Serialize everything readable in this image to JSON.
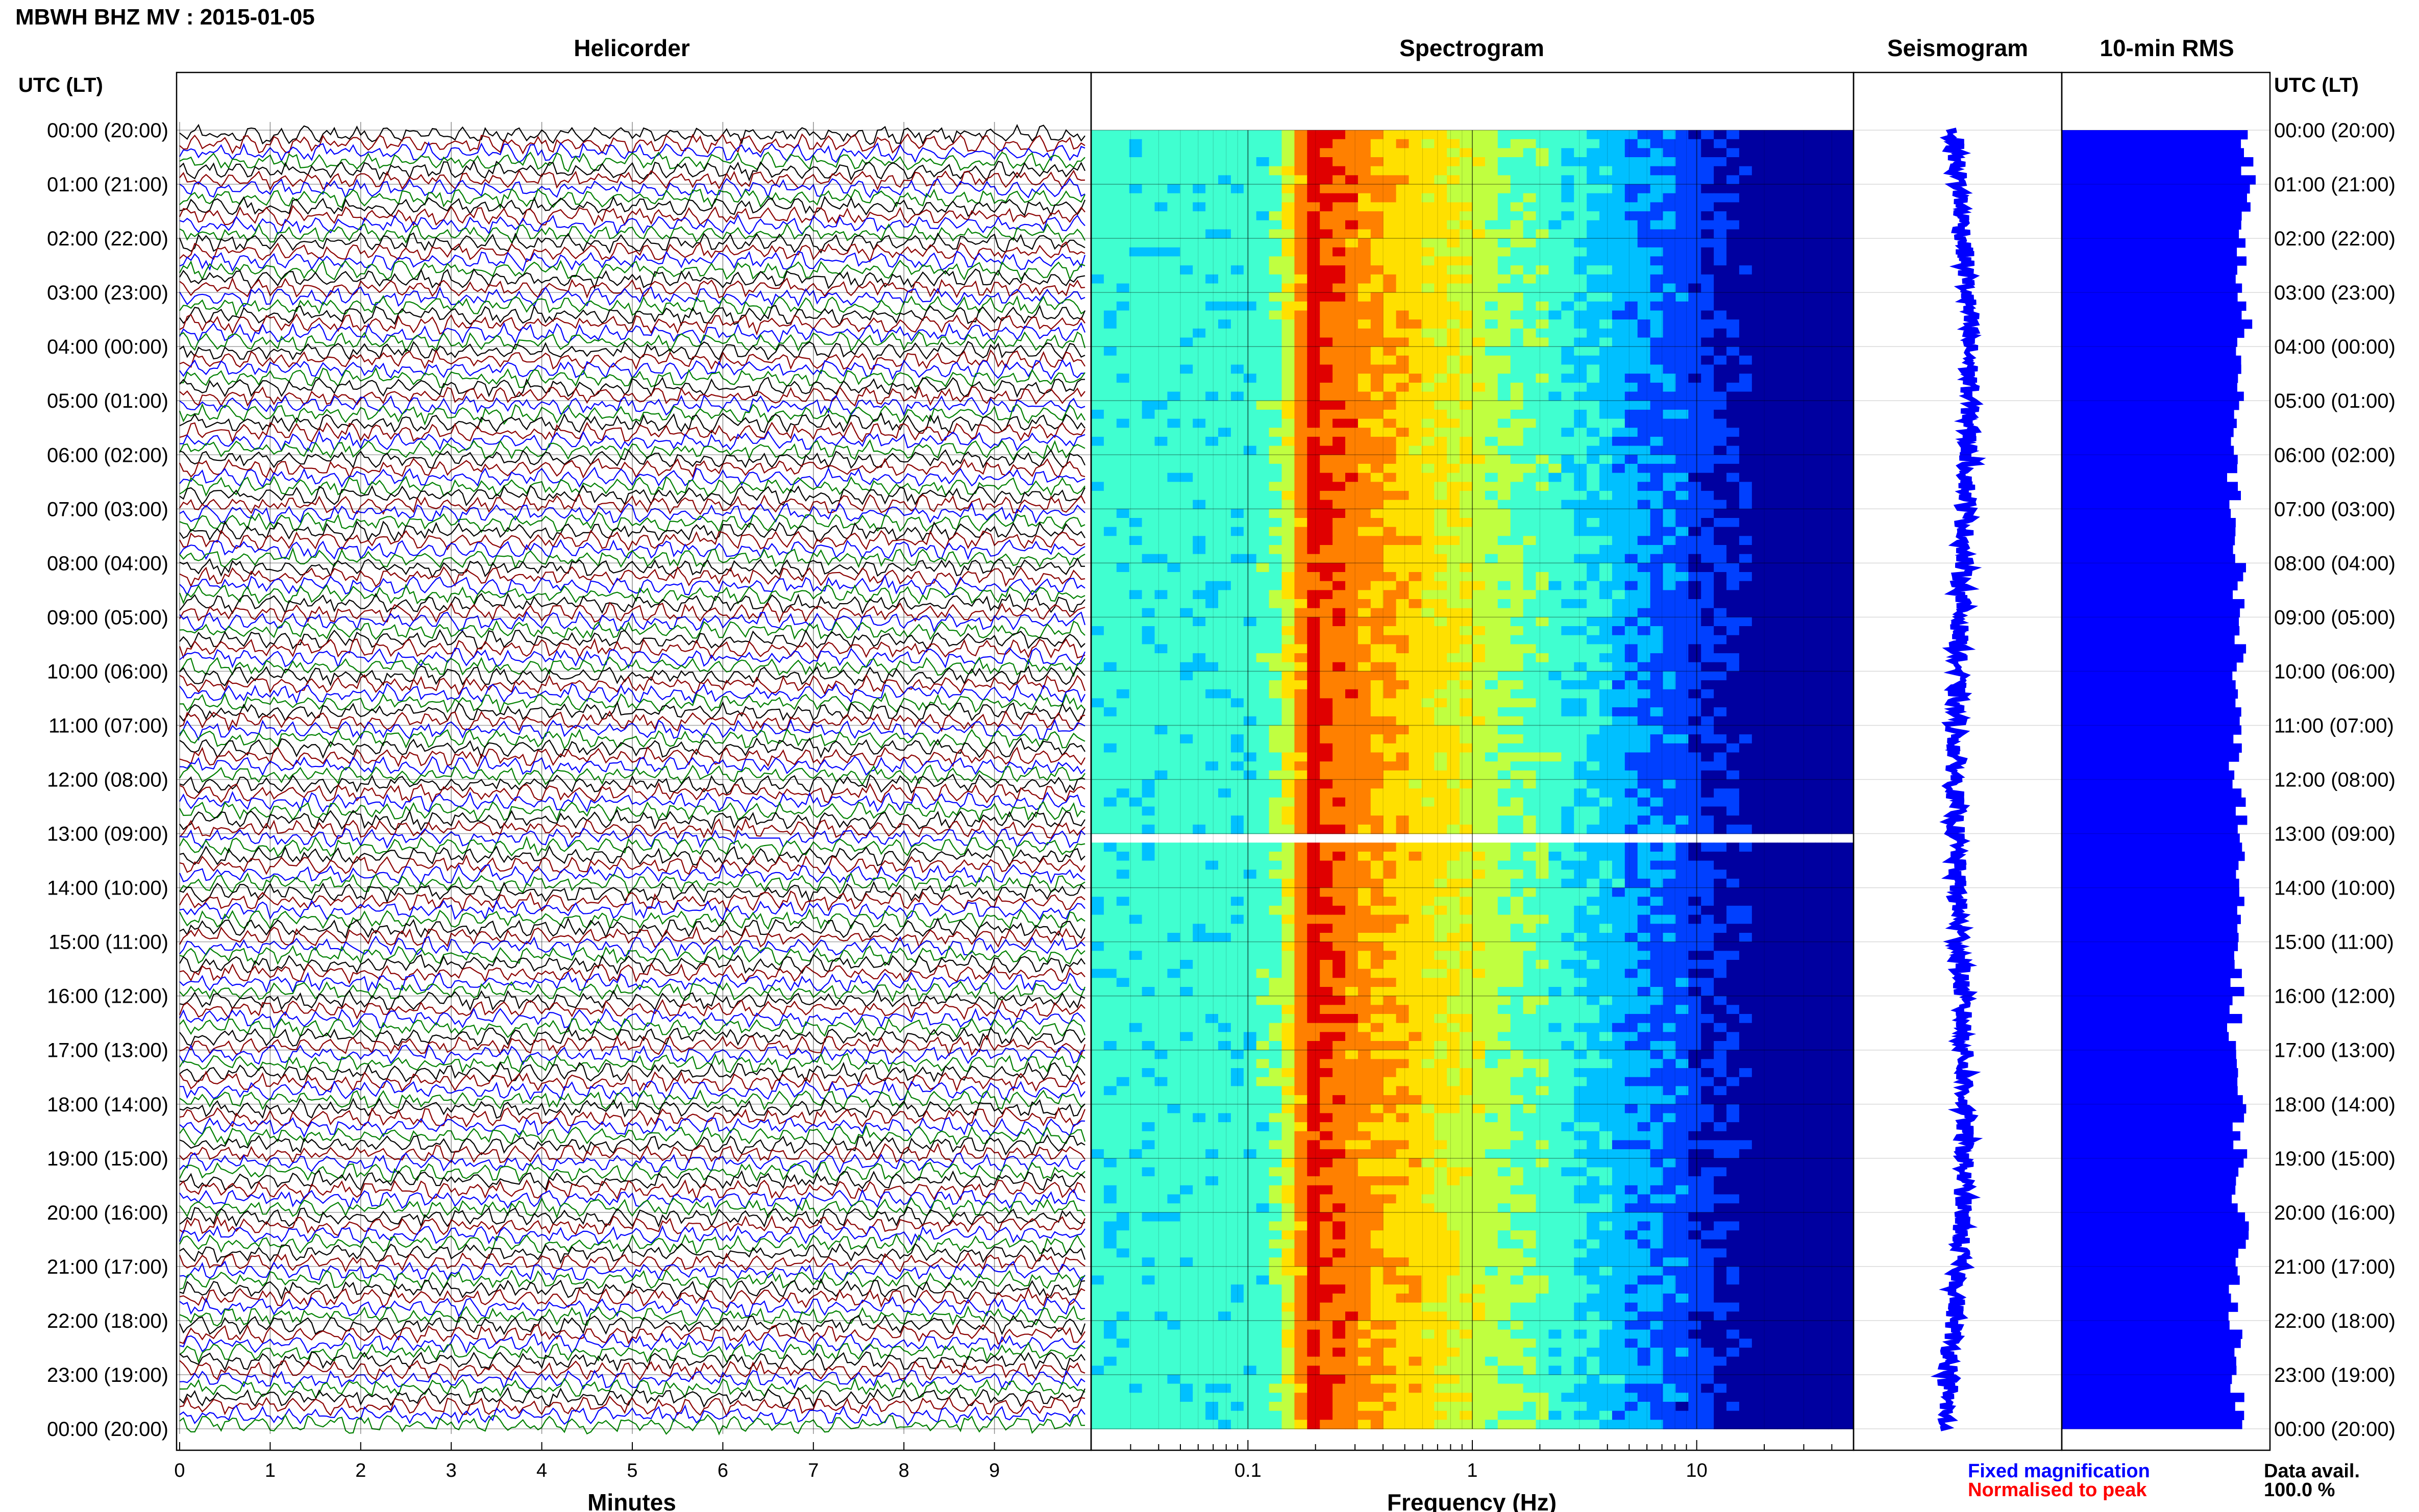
{
  "title": "MBWH BHZ MV : 2015-01-05",
  "utc_header_left": "UTC (LT)",
  "utc_header_right": "UTC (LT)",
  "time_labels": [
    "00:00 (20:00)",
    "01:00 (21:00)",
    "02:00 (22:00)",
    "03:00 (23:00)",
    "04:00 (00:00)",
    "05:00 (01:00)",
    "06:00 (02:00)",
    "07:00 (03:00)",
    "08:00 (04:00)",
    "09:00 (05:00)",
    "10:00 (06:00)",
    "11:00 (07:00)",
    "12:00 (08:00)",
    "13:00 (09:00)",
    "14:00 (10:00)",
    "15:00 (11:00)",
    "16:00 (12:00)",
    "17:00 (13:00)",
    "18:00 (14:00)",
    "19:00 (15:00)",
    "20:00 (16:00)",
    "21:00 (17:00)",
    "22:00 (18:00)",
    "23:00 (19:00)",
    "00:00 (20:00)"
  ],
  "legend": {
    "fixed": "Fixed magnification",
    "fixed_color": "#0000ff",
    "normalised": "Normalised to peak",
    "normalised_color": "#ff0000"
  },
  "data_avail_label": "Data avail.",
  "data_avail_value": "100.0 %",
  "colors": {
    "trace_cycle": [
      "#000000",
      "#8b0000",
      "#0000ff",
      "#008000"
    ],
    "rms_bar": "#0000ff",
    "seismogram": "#0000ff",
    "spectrogram_cmap": [
      "#0000a0",
      "#0040ff",
      "#00c0ff",
      "#40ffd0",
      "#c0ff40",
      "#ffe000",
      "#ff8000",
      "#e00000"
    ]
  },
  "chart_data": [
    {
      "type": "line",
      "panel": "helicorder",
      "title": "Helicorder",
      "xlabel": "Minutes",
      "x_ticks": [
        "0",
        "1",
        "2",
        "3",
        "4",
        "5",
        "6",
        "7",
        "8",
        "9"
      ],
      "xlim": [
        0,
        10
      ],
      "traces_per_hour": 6,
      "total_traces": 144,
      "gap_at_trace": 78
    },
    {
      "type": "heatmap",
      "panel": "spectrogram",
      "title": "Spectrogram",
      "xlabel": "Frequency (Hz)",
      "x_scale": "log",
      "xlim": [
        0.02,
        50
      ],
      "x_ticks": [
        "0.1",
        "1",
        "10"
      ],
      "x_tick_values": [
        0.1,
        1,
        10
      ],
      "rows": 144,
      "peak_frequency_hz": 0.2,
      "gap_at_row": 78
    },
    {
      "type": "line",
      "panel": "seismogram",
      "title": "Seismogram",
      "rows": 144
    },
    {
      "type": "bar",
      "panel": "rms",
      "title": "10-min RMS",
      "orientation": "horizontal",
      "rows": 144,
      "values_relative": [
        0.92,
        0.9,
        0.88,
        0.9,
        0.86,
        0.84,
        0.85,
        0.86,
        0.87,
        0.88,
        0.86,
        0.85,
        0.88,
        0.87,
        0.86,
        0.87,
        0.85,
        0.86,
        0.88,
        0.87,
        0.89,
        0.86,
        0.85,
        0.87
      ]
    }
  ]
}
